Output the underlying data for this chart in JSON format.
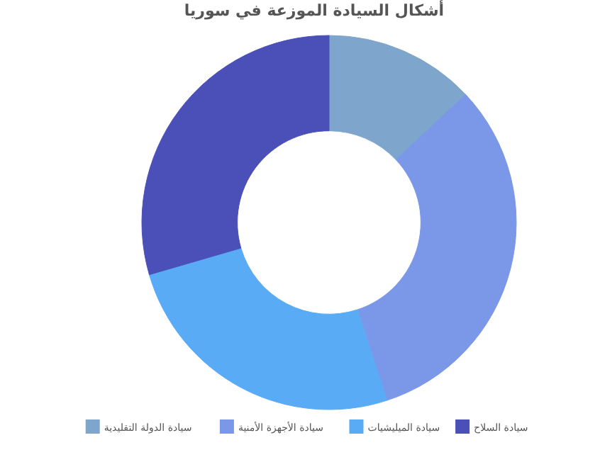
{
  "chart_data": {
    "type": "donut",
    "title": "أشكال السيادة الموزعة في سوريا",
    "categories": [
      "سيادة الدولة التقليدية",
      "سيادة الأجهزة الأمنية",
      "سيادة الميليشيات",
      "سيادة السلاح"
    ],
    "values": [
      13,
      32,
      25.5,
      29.5
    ],
    "colors": [
      "#7ea6cc",
      "#7b97e8",
      "#5aabf5",
      "#4b4fb8"
    ],
    "legend": "bottom"
  }
}
